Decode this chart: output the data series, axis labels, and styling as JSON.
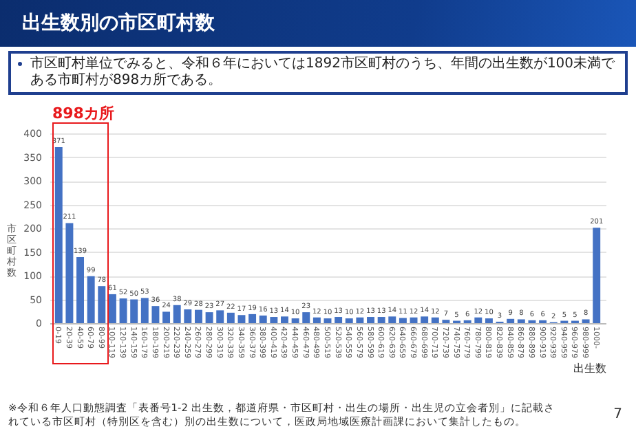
{
  "chart_data": {
    "type": "bar",
    "title": "出生数別の市区町村数",
    "subtitle": "市区町村単位でみると、令和６年においては1892市区町村のうち、年間の出生数が100未満である市町村が898カ所である。",
    "xlabel": "出生数",
    "ylabel": "市区町村数",
    "categories": [
      "0-19",
      "20-39",
      "40-59",
      "60-79",
      "80-99",
      "100-119",
      "120-139",
      "140-159",
      "160-179",
      "180-199",
      "200-219",
      "220-239",
      "240-259",
      "260-279",
      "280-299",
      "300-319",
      "320-339",
      "340-359",
      "360-379",
      "380-399",
      "400-419",
      "420-439",
      "440-459",
      "460-479",
      "480-499",
      "500-519",
      "520-539",
      "540-559",
      "560-579",
      "580-599",
      "600-619",
      "620-639",
      "640-659",
      "660-679",
      "680-699",
      "700-719",
      "720-739",
      "740-759",
      "760-779",
      "780-799",
      "800-819",
      "820-839",
      "840-859",
      "860-879",
      "880-899",
      "900-919",
      "920-939",
      "940-959",
      "960-979",
      "980-999",
      "1000-"
    ],
    "values": [
      371,
      211,
      139,
      99,
      78,
      61,
      52,
      50,
      53,
      36,
      24,
      38,
      29,
      28,
      23,
      27,
      22,
      17,
      19,
      16,
      13,
      14,
      10,
      23,
      12,
      10,
      13,
      10,
      12,
      13,
      13,
      14,
      11,
      12,
      14,
      12,
      7,
      5,
      6,
      12,
      10,
      3,
      9,
      8,
      6,
      6,
      2,
      5,
      5,
      8,
      201
    ],
    "color": "#4472c4",
    "ylim": [
      0,
      400
    ],
    "yticks": [
      0,
      50,
      100,
      150,
      200,
      250,
      300,
      350,
      400
    ],
    "grid": "y",
    "data_labels": true,
    "annotations": [
      "898カ所",
      "※令和６年人口動態調査「表番号1-2 出生数，都道府県・市区町村・出生の場所・出生児の立会者別」に記載されている市区町村（特別区を含む）別の出生数について，医政局地域医療計画課において集計したもの。",
      "7"
    ]
  }
}
